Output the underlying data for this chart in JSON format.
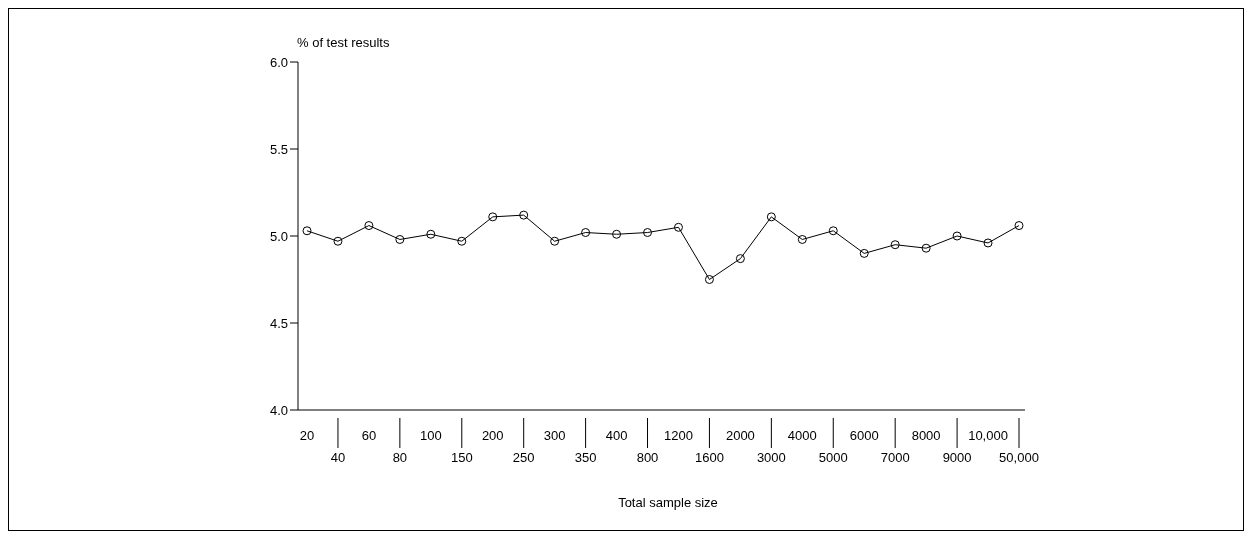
{
  "chart_data": {
    "type": "line",
    "xlabel": "Total sample size",
    "ylabel": "% of test results",
    "categories": [
      "20",
      "40",
      "60",
      "80",
      "100",
      "150",
      "200",
      "250",
      "300",
      "350",
      "400",
      "800",
      "1200",
      "1600",
      "2000",
      "3000",
      "4000",
      "5000",
      "6000",
      "7000",
      "8000",
      "9000",
      "10,000",
      "50,000"
    ],
    "series": [
      {
        "color": "#000000",
        "values": [
          5.03,
          4.97,
          5.06,
          4.98,
          5.01,
          4.97,
          5.11,
          5.12,
          4.97,
          5.02,
          5.01,
          5.02,
          5.05,
          4.75,
          4.87,
          5.11,
          4.98,
          5.03,
          4.9,
          4.95,
          4.93,
          5.0,
          4.96,
          5.06
        ]
      }
    ],
    "ylim": [
      4.0,
      6.0
    ],
    "yticks": [
      {
        "value": 4.0,
        "label": "4.0"
      },
      {
        "value": 4.5,
        "label": "4.5"
      },
      {
        "value": 5.0,
        "label": "5.0"
      },
      {
        "value": 5.5,
        "label": "5.5"
      },
      {
        "value": 6.0,
        "label": "6.0"
      }
    ],
    "grid": false,
    "legend": false,
    "marker": "circle",
    "line_style": "solid"
  }
}
